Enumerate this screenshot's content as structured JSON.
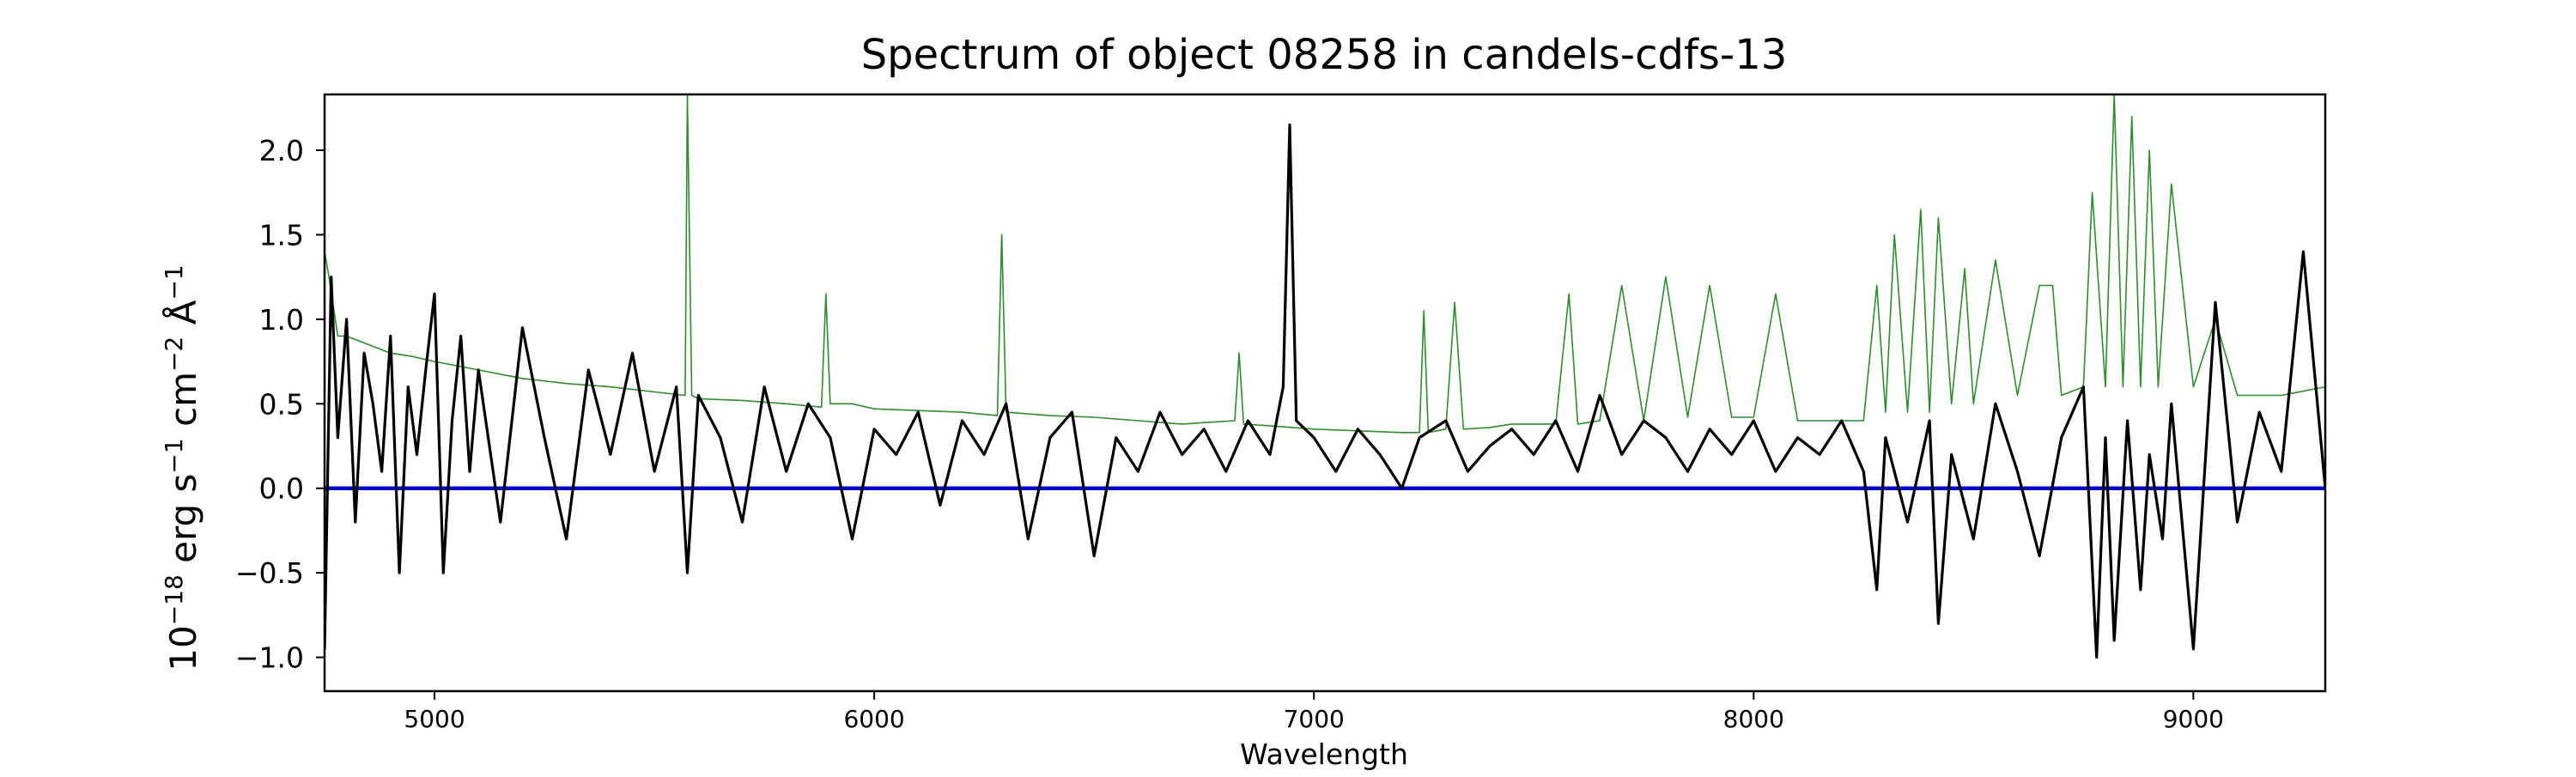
{
  "chart_data": {
    "type": "line",
    "title": "Spectrum of object 08258 in candels-cdfs-13",
    "xlabel": "Wavelength",
    "ylabel_parts": {
      "base": "10",
      "exp1": "−18",
      "t2": " erg s",
      "exp2": "−1",
      "t3": " cm",
      "exp3": "−2",
      "t4": " Å",
      "exp4": "−1"
    },
    "xlim": [
      4750,
      9300
    ],
    "ylim": [
      -1.2,
      2.33
    ],
    "x_ticks": [
      5000,
      6000,
      7000,
      8000,
      9000
    ],
    "x_tick_labels": [
      "5000",
      "6000",
      "7000",
      "8000",
      "9000"
    ],
    "y_ticks": [
      -1.0,
      -0.5,
      0.0,
      0.5,
      1.0,
      1.5,
      2.0
    ],
    "y_tick_labels": [
      "−1.0",
      "−0.5",
      "0.0",
      "0.5",
      "1.0",
      "1.5",
      "2.0"
    ],
    "grid": false,
    "colors": {
      "flux": "#000000",
      "error": "#2e8b2e",
      "zero": "#0000cc"
    },
    "series": [
      {
        "id": "flux",
        "x": [
          4750,
          4765,
          4780,
          4800,
          4820,
          4840,
          4860,
          4880,
          4900,
          4920,
          4940,
          4960,
          4980,
          5000,
          5020,
          5040,
          5060,
          5080,
          5100,
          5150,
          5200,
          5250,
          5300,
          5350,
          5400,
          5450,
          5500,
          5550,
          5575,
          5600,
          5650,
          5700,
          5750,
          5800,
          5850,
          5900,
          5950,
          6000,
          6050,
          6100,
          6150,
          6200,
          6250,
          6300,
          6350,
          6400,
          6450,
          6500,
          6550,
          6600,
          6650,
          6700,
          6750,
          6800,
          6850,
          6900,
          6930,
          6945,
          6960,
          7000,
          7050,
          7100,
          7150,
          7200,
          7240,
          7300,
          7350,
          7400,
          7450,
          7500,
          7550,
          7600,
          7650,
          7700,
          7750,
          7800,
          7850,
          7900,
          7950,
          8000,
          8050,
          8100,
          8150,
          8200,
          8250,
          8280,
          8300,
          8350,
          8400,
          8420,
          8450,
          8500,
          8550,
          8600,
          8650,
          8700,
          8750,
          8780,
          8800,
          8820,
          8850,
          8880,
          8900,
          8930,
          8950,
          9000,
          9050,
          9100,
          9150,
          9200,
          9250,
          9300
        ],
        "y": [
          -0.95,
          1.25,
          0.3,
          1.0,
          -0.2,
          0.8,
          0.5,
          0.1,
          0.9,
          -0.5,
          0.6,
          0.2,
          0.7,
          1.15,
          -0.5,
          0.4,
          0.9,
          0.1,
          0.7,
          -0.2,
          0.95,
          0.3,
          -0.3,
          0.7,
          0.2,
          0.8,
          0.1,
          0.6,
          -0.5,
          0.55,
          0.3,
          -0.2,
          0.6,
          0.1,
          0.5,
          0.3,
          -0.3,
          0.35,
          0.2,
          0.45,
          -0.1,
          0.4,
          0.2,
          0.5,
          -0.3,
          0.3,
          0.45,
          -0.4,
          0.3,
          0.1,
          0.45,
          0.2,
          0.35,
          0.1,
          0.4,
          0.2,
          0.6,
          2.15,
          0.4,
          0.3,
          0.1,
          0.35,
          0.2,
          0.0,
          0.3,
          0.4,
          0.1,
          0.25,
          0.35,
          0.2,
          0.4,
          0.1,
          0.55,
          0.2,
          0.4,
          0.3,
          0.1,
          0.35,
          0.2,
          0.4,
          0.1,
          0.3,
          0.2,
          0.4,
          0.1,
          -0.6,
          0.3,
          -0.2,
          0.4,
          -0.8,
          0.2,
          -0.3,
          0.5,
          0.1,
          -0.4,
          0.3,
          0.6,
          -1.0,
          0.3,
          -0.9,
          0.4,
          -0.6,
          0.2,
          -0.3,
          0.5,
          -0.95,
          1.1,
          -0.2,
          0.45,
          0.1,
          1.4,
          0.0
        ]
      },
      {
        "id": "error",
        "x": [
          4750,
          4760,
          4780,
          4800,
          4850,
          4900,
          4950,
          5000,
          5100,
          5200,
          5300,
          5400,
          5500,
          5570,
          5575,
          5585,
          5600,
          5700,
          5800,
          5880,
          5890,
          5900,
          5950,
          6000,
          6100,
          6200,
          6280,
          6290,
          6300,
          6400,
          6500,
          6600,
          6700,
          6820,
          6830,
          6840,
          6900,
          7000,
          7100,
          7200,
          7240,
          7250,
          7260,
          7300,
          7320,
          7340,
          7400,
          7450,
          7500,
          7550,
          7580,
          7600,
          7650,
          7700,
          7750,
          7800,
          7850,
          7900,
          7950,
          8000,
          8050,
          8100,
          8150,
          8200,
          8250,
          8280,
          8300,
          8320,
          8350,
          8380,
          8400,
          8420,
          8450,
          8480,
          8500,
          8550,
          8600,
          8650,
          8680,
          8700,
          8750,
          8770,
          8800,
          8820,
          8840,
          8860,
          8880,
          8900,
          8920,
          8950,
          9000,
          9050,
          9100,
          9200,
          9300
        ],
        "y": [
          1.4,
          1.25,
          0.9,
          0.9,
          0.85,
          0.8,
          0.78,
          0.75,
          0.7,
          0.65,
          0.62,
          0.6,
          0.57,
          0.55,
          2.33,
          0.55,
          0.53,
          0.52,
          0.5,
          0.48,
          1.15,
          0.5,
          0.5,
          0.47,
          0.46,
          0.45,
          0.43,
          1.5,
          0.45,
          0.43,
          0.42,
          0.4,
          0.38,
          0.4,
          0.8,
          0.38,
          0.37,
          0.35,
          0.34,
          0.33,
          0.33,
          1.05,
          0.33,
          0.35,
          1.1,
          0.35,
          0.36,
          0.38,
          0.38,
          0.38,
          1.15,
          0.38,
          0.4,
          1.2,
          0.4,
          1.25,
          0.42,
          1.2,
          0.42,
          0.42,
          1.15,
          0.4,
          0.4,
          0.4,
          0.4,
          1.2,
          0.45,
          1.5,
          0.45,
          1.65,
          0.45,
          1.6,
          0.5,
          1.3,
          0.5,
          1.35,
          0.55,
          1.2,
          1.2,
          0.55,
          0.6,
          1.75,
          0.6,
          2.33,
          0.6,
          2.2,
          0.6,
          2.0,
          0.6,
          1.8,
          0.6,
          1.0,
          0.55,
          0.55,
          0.6
        ]
      },
      {
        "id": "zero",
        "x": [
          4750,
          9300
        ],
        "y": [
          0.0,
          0.0
        ]
      }
    ]
  }
}
